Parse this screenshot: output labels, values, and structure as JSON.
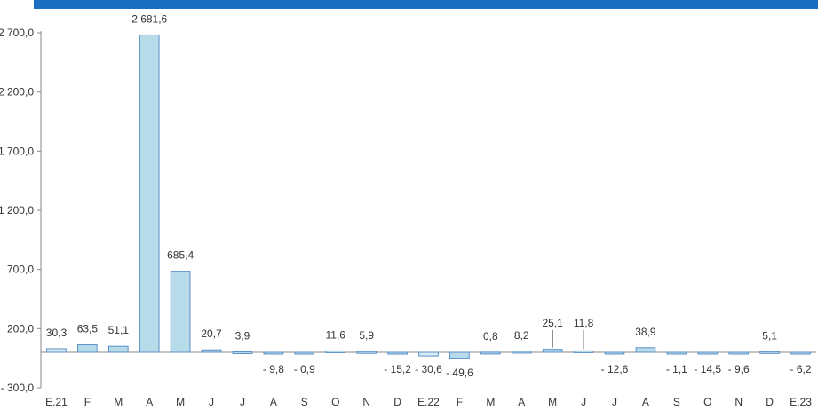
{
  "chart_data": {
    "type": "bar",
    "categories": [
      "E.21",
      "F",
      "M",
      "A",
      "M",
      "J",
      "J",
      "A",
      "S",
      "O",
      "N",
      "D",
      "E.22",
      "F",
      "M",
      "A",
      "M",
      "J",
      "J",
      "A",
      "S",
      "O",
      "N",
      "D",
      "E.23"
    ],
    "values": [
      30.3,
      63.5,
      51.1,
      2681.6,
      685.4,
      20.7,
      3.9,
      -9.8,
      -0.9,
      11.6,
      5.9,
      -15.2,
      -30.6,
      -49.6,
      0.8,
      8.2,
      25.1,
      11.8,
      -12.6,
      38.9,
      -1.1,
      -14.5,
      -9.6,
      5.1,
      -6.2
    ],
    "data_labels": [
      "30,3",
      "63,5",
      "51,1",
      "2 681,6",
      "685,4",
      "20,7",
      "3,9",
      "- 9,8",
      "- 0,9",
      "11,6",
      "5,9",
      "- 15,2",
      "- 30,6",
      "- 49,6",
      "0,8",
      "8,2",
      "25,1",
      "11,8",
      "- 12,6",
      "38,9",
      "- 1,1",
      "- 14,5",
      "- 9,6",
      "5,1",
      "- 6,2"
    ],
    "yticks": [
      -300,
      200,
      700,
      1200,
      1700,
      2200,
      2700
    ],
    "ytick_labels": [
      "- 300,0",
      "200,0",
      "700,0",
      "1 200,0",
      "1 700,0",
      "2 200,0",
      "2 700,0"
    ],
    "ylim": [
      -300,
      2700
    ],
    "bar_fill": "#b7dbe8",
    "bar_fill_light": "#d9ecf3",
    "bar_stroke": "#5b8fc9",
    "header_color": "#1b6fc2"
  }
}
